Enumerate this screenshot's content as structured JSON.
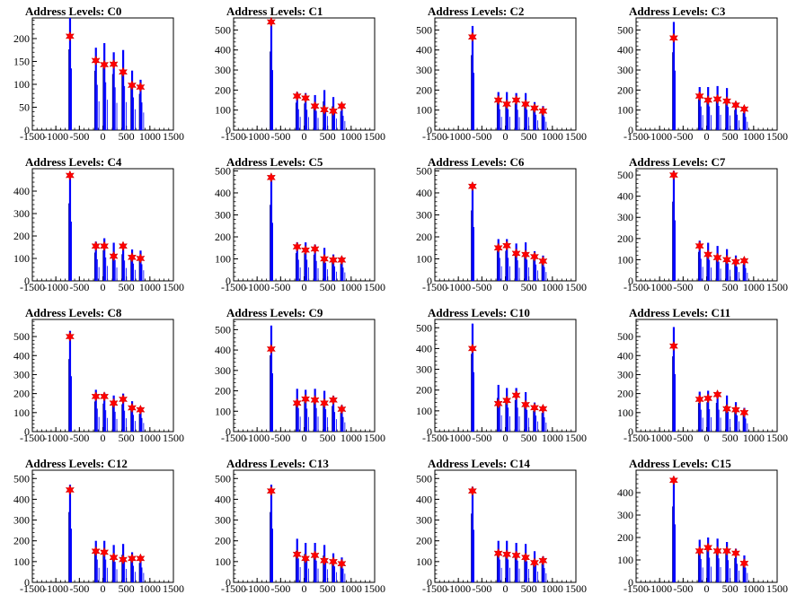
{
  "chart_data": [
    {
      "type": "bar",
      "title": "Address Levels: C0",
      "xlim": [
        -1500,
        1500
      ],
      "ylim": [
        0,
        245
      ],
      "xticks": [
        -1500,
        -1000,
        -500,
        0,
        500,
        1000,
        1500
      ],
      "yticks": [
        0,
        50,
        100,
        150,
        200
      ],
      "x": [
        -700,
        -150,
        30,
        230,
        430,
        620,
        800
      ],
      "values": [
        245,
        180,
        190,
        170,
        175,
        130,
        110
      ],
      "peak_values": [
        205,
        152,
        143,
        144,
        127,
        98,
        94
      ]
    },
    {
      "type": "bar",
      "title": "Address Levels: C1",
      "xlim": [
        -1500,
        1500
      ],
      "ylim": [
        0,
        560
      ],
      "xticks": [
        -1500,
        -1000,
        -500,
        0,
        500,
        1000,
        1500
      ],
      "yticks": [
        0,
        100,
        200,
        300,
        400,
        500
      ],
      "x": [
        -700,
        -150,
        30,
        230,
        430,
        620,
        800
      ],
      "values": [
        545,
        190,
        185,
        175,
        200,
        165,
        130
      ],
      "peak_values": [
        540,
        170,
        160,
        120,
        102,
        95,
        120
      ]
    },
    {
      "type": "bar",
      "title": "Address Levels: C2",
      "xlim": [
        -1500,
        1500
      ],
      "ylim": [
        0,
        560
      ],
      "xticks": [
        -1500,
        -1000,
        -500,
        0,
        500,
        1000,
        1500
      ],
      "yticks": [
        0,
        100,
        200,
        300,
        400,
        500
      ],
      "x": [
        -700,
        -150,
        30,
        230,
        430,
        620,
        800
      ],
      "values": [
        520,
        190,
        190,
        185,
        185,
        140,
        120
      ],
      "peak_values": [
        465,
        150,
        130,
        150,
        130,
        110,
        95
      ]
    },
    {
      "type": "bar",
      "title": "Address Levels: C3",
      "xlim": [
        -1500,
        1500
      ],
      "ylim": [
        0,
        560
      ],
      "xticks": [
        -1500,
        -1000,
        -500,
        0,
        500,
        1000,
        1500
      ],
      "yticks": [
        0,
        100,
        200,
        300,
        400,
        500
      ],
      "x": [
        -700,
        -150,
        30,
        230,
        430,
        620,
        800
      ],
      "values": [
        540,
        215,
        215,
        220,
        210,
        140,
        120
      ],
      "peak_values": [
        460,
        170,
        150,
        155,
        145,
        125,
        105
      ]
    },
    {
      "type": "bar",
      "title": "Address Levels: C4",
      "xlim": [
        -1500,
        1500
      ],
      "ylim": [
        0,
        500
      ],
      "xticks": [
        -1500,
        -1000,
        -500,
        0,
        500,
        1000,
        1500
      ],
      "yticks": [
        0,
        100,
        200,
        300,
        400
      ],
      "x": [
        -700,
        -150,
        30,
        230,
        430,
        620,
        800
      ],
      "values": [
        480,
        175,
        190,
        170,
        165,
        140,
        135
      ],
      "peak_values": [
        470,
        155,
        155,
        110,
        155,
        105,
        100
      ]
    },
    {
      "type": "bar",
      "title": "Address Levels: C5",
      "xlim": [
        -1500,
        1500
      ],
      "ylim": [
        0,
        510
      ],
      "xticks": [
        -1500,
        -1000,
        -500,
        0,
        500,
        1000,
        1500
      ],
      "yticks": [
        0,
        100,
        200,
        300,
        400,
        500
      ],
      "x": [
        -700,
        -150,
        30,
        230,
        430,
        620,
        800
      ],
      "values": [
        480,
        175,
        175,
        165,
        150,
        120,
        110
      ],
      "peak_values": [
        470,
        155,
        140,
        145,
        100,
        95,
        95
      ]
    },
    {
      "type": "bar",
      "title": "Address Levels: C6",
      "xlim": [
        -1500,
        1500
      ],
      "ylim": [
        0,
        510
      ],
      "xticks": [
        -1500,
        -1000,
        -500,
        0,
        500,
        1000,
        1500
      ],
      "yticks": [
        0,
        100,
        200,
        300,
        400,
        500
      ],
      "x": [
        -700,
        -150,
        30,
        230,
        430,
        620,
        800
      ],
      "values": [
        445,
        190,
        190,
        170,
        175,
        135,
        115
      ],
      "peak_values": [
        430,
        150,
        160,
        125,
        120,
        110,
        90
      ]
    },
    {
      "type": "bar",
      "title": "Address Levels: C7",
      "xlim": [
        -1500,
        1500
      ],
      "ylim": [
        0,
        530
      ],
      "xticks": [
        -1500,
        -1000,
        -500,
        0,
        500,
        1000,
        1500
      ],
      "yticks": [
        0,
        100,
        200,
        300,
        400,
        500
      ],
      "x": [
        -700,
        -150,
        30,
        230,
        430,
        620,
        800
      ],
      "values": [
        520,
        190,
        180,
        165,
        150,
        120,
        110
      ],
      "peak_values": [
        500,
        165,
        125,
        110,
        100,
        90,
        95
      ]
    },
    {
      "type": "bar",
      "title": "Address Levels: C8",
      "xlim": [
        -1500,
        1500
      ],
      "ylim": [
        0,
        590
      ],
      "xticks": [
        -1500,
        -1000,
        -500,
        0,
        500,
        1000,
        1500
      ],
      "yticks": [
        0,
        100,
        200,
        300,
        400,
        500
      ],
      "x": [
        -700,
        -150,
        30,
        230,
        430,
        620,
        800
      ],
      "values": [
        530,
        220,
        205,
        190,
        200,
        160,
        130
      ],
      "peak_values": [
        500,
        185,
        185,
        150,
        170,
        125,
        115
      ]
    },
    {
      "type": "bar",
      "title": "Address Levels: C9",
      "xlim": [
        -1500,
        1500
      ],
      "ylim": [
        0,
        550
      ],
      "xticks": [
        -1500,
        -1000,
        -500,
        0,
        500,
        1000,
        1500
      ],
      "yticks": [
        0,
        100,
        200,
        300,
        400,
        500
      ],
      "x": [
        -700,
        -150,
        30,
        230,
        430,
        620,
        800
      ],
      "values": [
        520,
        210,
        205,
        210,
        200,
        175,
        130
      ],
      "peak_values": [
        405,
        140,
        160,
        155,
        140,
        155,
        110
      ]
    },
    {
      "type": "bar",
      "title": "Address Levels: C10",
      "xlim": [
        -1500,
        1500
      ],
      "ylim": [
        0,
        540
      ],
      "xticks": [
        -1500,
        -1000,
        -500,
        0,
        500,
        1000,
        1500
      ],
      "yticks": [
        0,
        100,
        200,
        300,
        400,
        500
      ],
      "x": [
        -700,
        -150,
        30,
        230,
        430,
        620,
        800
      ],
      "values": [
        520,
        225,
        210,
        210,
        190,
        140,
        125
      ],
      "peak_values": [
        400,
        135,
        150,
        175,
        130,
        115,
        110
      ]
    },
    {
      "type": "bar",
      "title": "Address Levels: C11",
      "xlim": [
        -1500,
        1500
      ],
      "ylim": [
        0,
        590
      ],
      "xticks": [
        -1500,
        -1000,
        -500,
        0,
        500,
        1000,
        1500
      ],
      "yticks": [
        0,
        100,
        200,
        300,
        400,
        500
      ],
      "x": [
        -700,
        -150,
        30,
        230,
        430,
        620,
        800
      ],
      "values": [
        550,
        210,
        215,
        210,
        190,
        155,
        125
      ],
      "peak_values": [
        450,
        170,
        175,
        195,
        120,
        115,
        100
      ]
    },
    {
      "type": "bar",
      "title": "Address Levels: C12",
      "xlim": [
        -1500,
        1500
      ],
      "ylim": [
        0,
        540
      ],
      "xticks": [
        -1500,
        -1000,
        -500,
        0,
        500,
        1000,
        1500
      ],
      "yticks": [
        0,
        100,
        200,
        300,
        400,
        500
      ],
      "x": [
        -700,
        -150,
        30,
        230,
        430,
        620,
        800
      ],
      "values": [
        470,
        200,
        200,
        180,
        185,
        145,
        130
      ],
      "peak_values": [
        445,
        150,
        145,
        120,
        110,
        115,
        115
      ]
    },
    {
      "type": "bar",
      "title": "Address Levels: C13",
      "xlim": [
        -1500,
        1500
      ],
      "ylim": [
        0,
        540
      ],
      "xticks": [
        -1500,
        -1000,
        -500,
        0,
        500,
        1000,
        1500
      ],
      "yticks": [
        0,
        100,
        200,
        300,
        400,
        500
      ],
      "x": [
        -700,
        -150,
        30,
        230,
        430,
        620,
        800
      ],
      "values": [
        470,
        210,
        190,
        190,
        180,
        140,
        120
      ],
      "peak_values": [
        440,
        135,
        115,
        130,
        105,
        100,
        90
      ]
    },
    {
      "type": "bar",
      "title": "Address Levels: C14",
      "xlim": [
        -1500,
        1500
      ],
      "ylim": [
        0,
        540
      ],
      "xticks": [
        -1500,
        -1000,
        -500,
        0,
        500,
        1000,
        1500
      ],
      "yticks": [
        0,
        100,
        200,
        300,
        400,
        500
      ],
      "x": [
        -700,
        -150,
        30,
        230,
        430,
        620,
        800
      ],
      "values": [
        460,
        200,
        200,
        190,
        185,
        150,
        125
      ],
      "peak_values": [
        440,
        140,
        135,
        130,
        120,
        95,
        105
      ]
    },
    {
      "type": "bar",
      "title": "Address Levels: C15",
      "xlim": [
        -1500,
        1500
      ],
      "ylim": [
        0,
        500
      ],
      "xticks": [
        -1500,
        -1000,
        -500,
        0,
        500,
        1000,
        1500
      ],
      "yticks": [
        0,
        100,
        200,
        300,
        400
      ],
      "x": [
        -700,
        -150,
        30,
        230,
        430,
        620,
        800
      ],
      "values": [
        470,
        190,
        200,
        195,
        180,
        150,
        120
      ],
      "peak_values": [
        455,
        140,
        155,
        140,
        140,
        130,
        85
      ]
    }
  ],
  "colors": {
    "bar": "#0000ff",
    "marker": "#ff0000",
    "axis": "#000000",
    "background": "#ffffff"
  },
  "marker_icon": "star-marker-icon"
}
